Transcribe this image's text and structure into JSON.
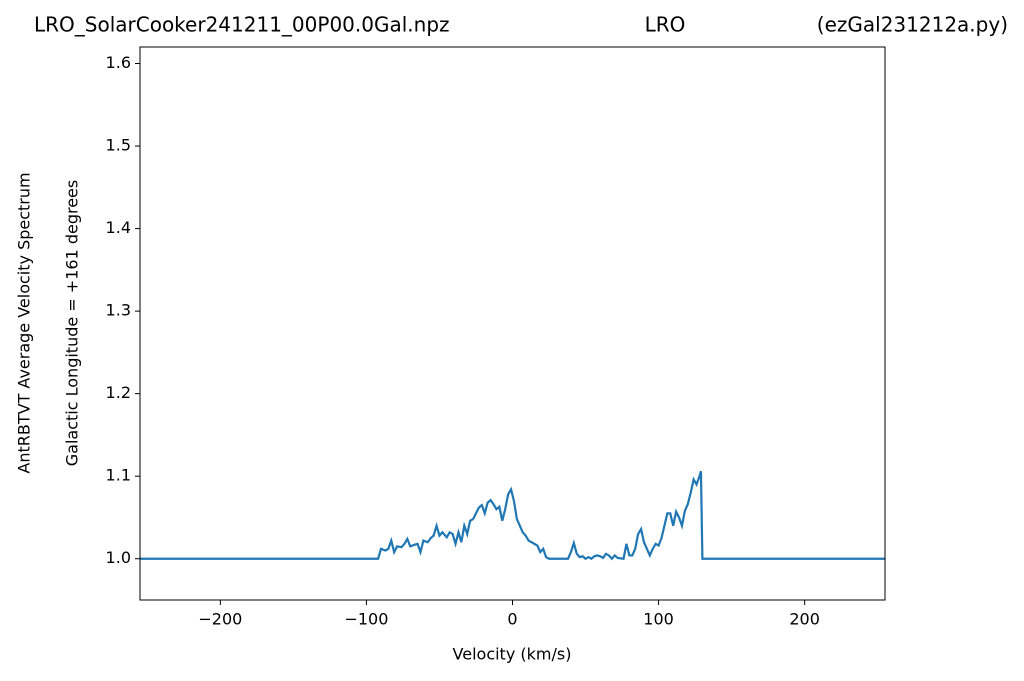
{
  "chart_data": {
    "type": "line",
    "titles": [
      "LRO_SolarCooker241211_00P00.0Gal.npz",
      "LRO",
      "(ezGal231212a.py)"
    ],
    "ylabels": [
      "AntRBTVT Average Velocity Spectrum",
      "Galactic Longitude = +161 degrees"
    ],
    "xlabel": "Velocity (km/s)",
    "xlim": [
      -255,
      255
    ],
    "ylim": [
      0.95,
      1.62
    ],
    "xticks": [
      {
        "value": -200,
        "label": "−200"
      },
      {
        "value": -100,
        "label": "−100"
      },
      0,
      100,
      200
    ],
    "yticks": [
      {
        "value": 1,
        "label": "1.0"
      },
      1.1,
      1.2,
      1.3,
      1.4,
      1.5,
      1.6
    ],
    "x": [
      -255,
      -92,
      -90,
      -87,
      -85,
      -83,
      -81,
      -79,
      -76,
      -74,
      -72,
      -70,
      -67,
      -65,
      -63,
      -61,
      -58,
      -56,
      -54,
      -52,
      -50,
      -48,
      -45,
      -43,
      -41,
      -39,
      -37,
      -35,
      -33,
      -31,
      -29,
      -27,
      -25,
      -23,
      -21,
      -19,
      -17,
      -15,
      -13,
      -11,
      -9,
      -7,
      -5,
      -3,
      -1,
      1,
      3,
      5,
      7,
      9,
      11,
      13,
      15,
      17,
      19,
      21,
      23,
      25,
      38,
      40,
      42,
      44,
      46,
      48,
      50,
      52,
      54,
      56,
      58,
      60,
      62,
      64,
      66,
      68,
      70,
      72,
      76,
      78,
      80,
      82,
      84,
      86,
      88,
      90,
      92,
      94,
      96,
      98,
      100,
      102,
      104,
      106,
      108,
      110,
      112,
      114,
      116,
      118,
      120,
      122,
      124,
      126,
      128,
      129,
      130,
      255
    ],
    "series": [
      {
        "color": "#1f77b4",
        "values": [
          1.0,
          1.0,
          1.012,
          1.01,
          1.012,
          1.022,
          1.008,
          1.015,
          1.014,
          1.018,
          1.024,
          1.015,
          1.017,
          1.018,
          1.008,
          1.022,
          1.02,
          1.025,
          1.028,
          1.04,
          1.028,
          1.032,
          1.026,
          1.032,
          1.03,
          1.018,
          1.032,
          1.02,
          1.04,
          1.03,
          1.046,
          1.048,
          1.055,
          1.062,
          1.065,
          1.055,
          1.068,
          1.071,
          1.066,
          1.06,
          1.063,
          1.046,
          1.06,
          1.078,
          1.084,
          1.07,
          1.048,
          1.04,
          1.032,
          1.028,
          1.022,
          1.02,
          1.018,
          1.016,
          1.008,
          1.012,
          1.002,
          1.0,
          1.0,
          1.008,
          1.019,
          1.006,
          1.002,
          1.003,
          1.0,
          1.002,
          1.0,
          1.003,
          1.004,
          1.003,
          1.001,
          1.006,
          1.004,
          1.0,
          1.004,
          1.001,
          1.0,
          1.018,
          1.004,
          1.004,
          1.012,
          1.03,
          1.036,
          1.02,
          1.012,
          1.004,
          1.012,
          1.018,
          1.016,
          1.025,
          1.04,
          1.055,
          1.055,
          1.04,
          1.057,
          1.05,
          1.04,
          1.058,
          1.066,
          1.08,
          1.096,
          1.09,
          1.1,
          1.106,
          1.0,
          1.0
        ]
      }
    ]
  }
}
